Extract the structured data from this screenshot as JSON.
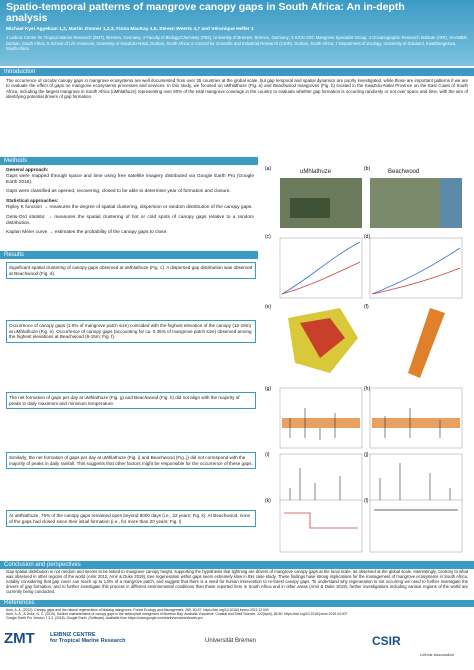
{
  "header": {
    "title": "Spatio-temporal patterns of mangrove canopy gaps in South Africa: An in-depth analysis",
    "authors": "Michael Kyei Agyekum 1,2, Martin Zimmer 1,2,3, Fiona MacKay 4,5, Steven Weerts 4,7 and Véronique Helfer 1",
    "affiliations": "1 Leibniz Centre for Tropical Marine Research (ZMT), Bremen, Germany; 2 Faculty of Biology/Chemistry (FB2), University of Bremen, Bremen, Germany; 3 IUCN SSC Mangrove Specialist Group; 4 Oceanographic Research Institute (ORI), SAAMBR, Durban, South Africa; 5 School of Life Sciences, University of KwaZulu-Natal, Durban, South Africa; 6 Council for Scientific and Industrial Research (CSIR), Durban, South Africa; 7 Department of Zoology, University of Zululand, KwaDlangezwa, South Africa"
  },
  "sections": {
    "introduction": {
      "heading": "Introduction",
      "text": "The occurrence of circular canopy gaps in mangrove ecosystems are well documented from over 35 countries at the global scale, but gap temporal and spatial dynamics are poorly investigated, while those are important patterns if we are to evaluate the effect of gaps on mangrove ecosystems processes and services. In this study, we focused on uMhlathuze (Fig. a) and Beachwood mangroves (Fig. b) located in the KwaZulu-Natal Province on the East Coast of South Africa, including the largest mangrove in South Africa (uMhlathuze) representing over 80% of the total mangrove coverage in the country to evaluate whether gap formation is occurring randomly or not over space and time, with the aim of identifying potential drivers of gap formation."
    },
    "methods": {
      "heading": "Methods",
      "items": [
        {
          "label": "General approach:",
          "text": "Gaps were mapped through space and time using free satellite imagery distributed via Google Earth Pro (Google Earth 2018)."
        },
        {
          "label": "",
          "text": "Gaps were classified as opened, recovering, closed to be able to determine year of formation and closure."
        },
        {
          "label": "Statistical approaches:",
          "text": "Ripley K function → measures the degree of spatial clustering, dispersion or random distribution of the canopy gaps."
        },
        {
          "label": "",
          "text": "Getis-Ord statistic → measures the spatial clustering of hot or cold spots of canopy gaps relative to a random distribution."
        },
        {
          "label": "",
          "text": "Kaplan Meier curve → estimates the probability of the canopy gaps to close."
        }
      ]
    },
    "results": {
      "heading": "Results",
      "boxes": [
        "Significant spatial clustering of canopy gaps observed at uMhlathuze (Fig. c). A dispersed gap distribution was observed at Beachwood (Fig. d).",
        "Occurrence of canopy gaps (1.5% of mangrove patch size) coincided with the highest elevation of the canopy (12-19m) at uMhlathuze (Fig. e). Occurrence of canopy gaps (accounting for ca. 0.35% of mangrove patch size) observed among the highest elevations at Beachwood (8-15m; Fig. f).",
        "The net formation of gaps per day at uMhlathuze (Fig. g) and Beachwood (Fig. h) did not align with the majority of peaks in daily maximum and minimum temperature.",
        "Similarly, the net formation of gaps per day at uMhlathuze (Fig. i) and Beachwood (Fig. j) did not correspond with the majority of peaks in daily rainfall. This suggests that other factors might be responsible for the occurrence of these gaps.",
        "At uMhlathuze, 75% of the canopy gaps remained open beyond 8000 days (i.e., 22 years; Fig. k). At Beachwood, none of the gaps had closed since their initial formation (i.e., for more than 20 years; Fig. l)"
      ]
    },
    "conclusion": {
      "heading": "Conclusion and perspectives",
      "text": "Gap spatial distribution is not random and seems to be linked to mangrove canopy height, supporting the hypothesis that lightning are drivers of mangrove canopy gaps at the local scale, as observed at the global scale. Interestingly, contrary to what was observed in other regions of the world (Amir 2012, Amir & Duke 2019), tree regeneration within gaps seem extremely slow in this case study. These findings have strong implications for the management of mangrove ecosystems in South Africa, notably considering that gap cover can reach up to 1.5% of a mangrove patch, and suggest that there is a need for human intervention to re-forest canopy gaps. To understand why regeneration is not occurring we need to further investigate the drivers of gap formation, and to further investigate this process in different environmental conditions than those reported here in South Africa and in other areas (Amir & Duke 2019), further investigations including various regions of the world are currently being conducted."
    },
    "references": {
      "heading": "References",
      "items": [
        "Amir, A. A. (2012). Canopy gaps and the natural regeneration of Matang mangroves. Forest Ecology and Management, 269, 60-67. https://doi.org/10.1016/j.foreco.2011.12.040",
        "Amir, A. A., & Duke, N. C. (2019). Distinct characteristics of canopy gaps in the subtropical mangroves of Moreton Bay, Australia. Estuarine, Coastal and Shelf Science, 222(April), 66-80. https://doi.org/10.1016/j.ecss.2019.04.007",
        "Google Earth Pro Version 7.3.3. (2018). Google Earth. (Software). Available from https://www.google.com/earth/versions/#earth-pro"
      ]
    }
  },
  "figure": {
    "panel_labels": [
      "(a)",
      "(b)",
      "(c)",
      "(d)",
      "(e)",
      "(f)",
      "(g)",
      "(h)",
      "(i)",
      "(j)",
      "(k)",
      "(l)"
    ],
    "site_names": [
      "uMhlathuze",
      "Beachwood"
    ]
  },
  "footer": {
    "zmt": "ZMT",
    "zmt_name": "LEIBNIZ CENTRE",
    "zmt_sub": "for Tropical Marine Research",
    "bremen": "Universität Bremen",
    "csir": "CSIR",
    "leibniz": "Leibniz Association"
  }
}
